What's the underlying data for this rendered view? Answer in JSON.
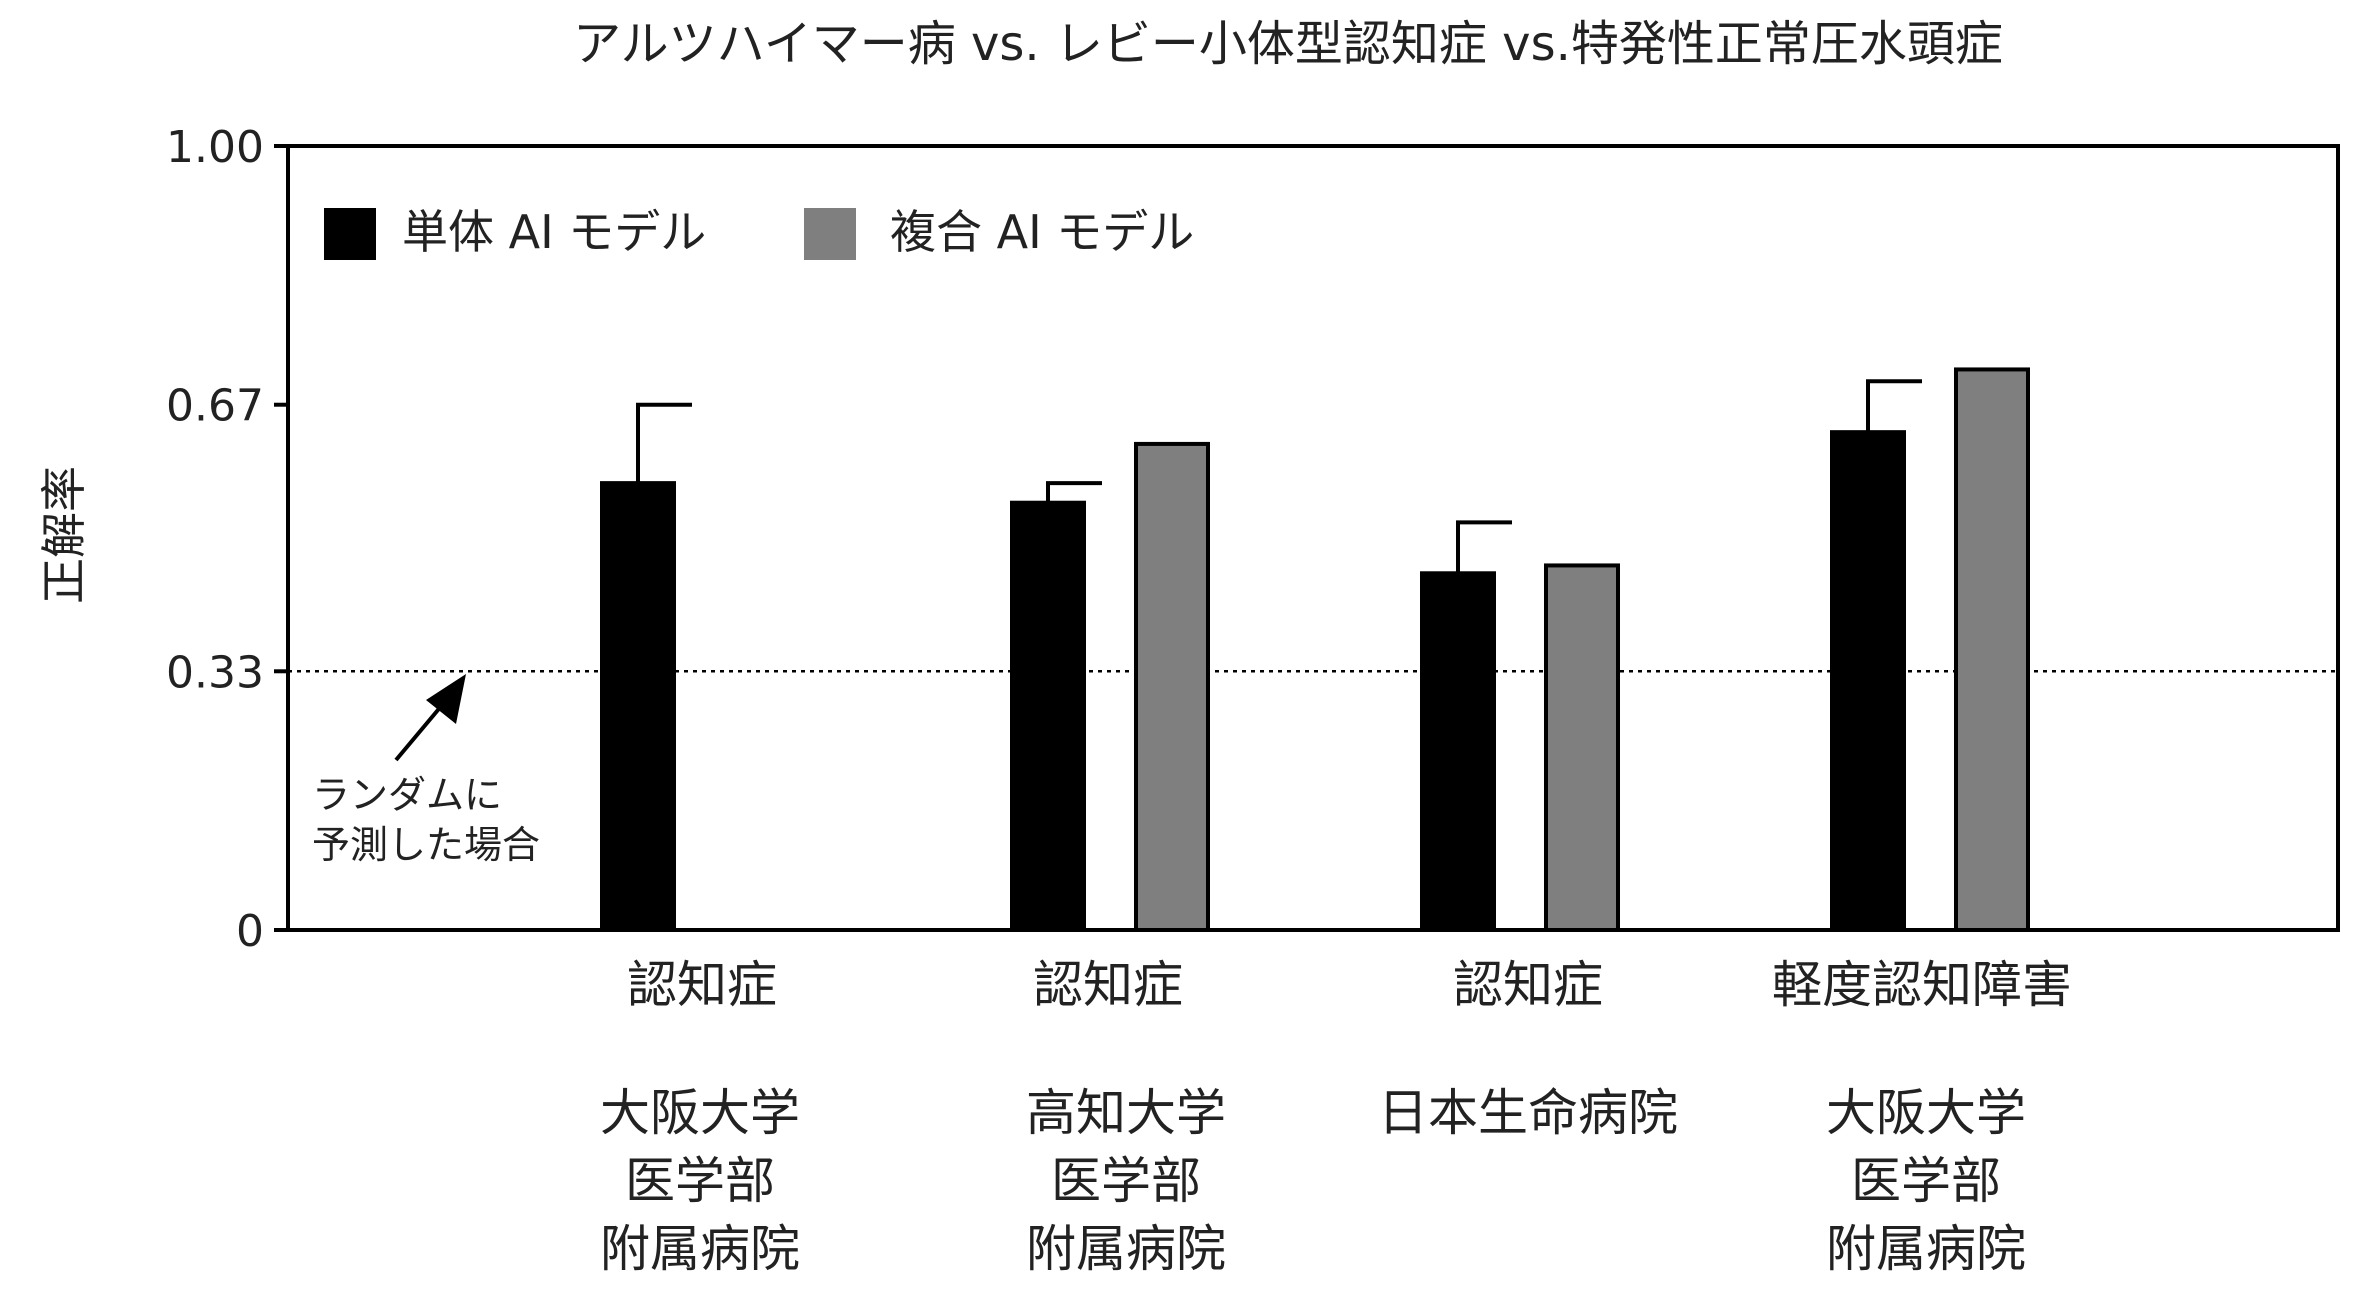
{
  "chart_data": {
    "type": "bar",
    "title": "アルツハイマー病 vs. レビー小体型認知症 vs.特発性正常圧水頭症",
    "ylabel": "正解率",
    "xlabel": "",
    "ylim": [
      0,
      1.0
    ],
    "yticks": [
      {
        "value": 0,
        "label": "0"
      },
      {
        "value": 0.33,
        "label": "0.33"
      },
      {
        "value": 0.67,
        "label": "0.67"
      },
      {
        "value": 1.0,
        "label": "1.00"
      }
    ],
    "grid": false,
    "legend_position": "top-left",
    "categories": [
      {
        "task": "認知症",
        "site": [
          "大阪大学",
          "医学部",
          "附属病院"
        ]
      },
      {
        "task": "認知症",
        "site": [
          "高知大学",
          "医学部",
          "附属病院"
        ]
      },
      {
        "task": "認知症",
        "site": [
          "日本生命病院"
        ]
      },
      {
        "task": "軽度認知障害",
        "site": [
          "大阪大学",
          "医学部",
          "附属病院"
        ]
      }
    ],
    "series": [
      {
        "name": "単体 AI モデル",
        "color": "#000000",
        "values": [
          0.57,
          0.545,
          0.455,
          0.635
        ],
        "error_upper": [
          0.67,
          0.57,
          0.52,
          0.7
        ]
      },
      {
        "name": "複合 AI モデル",
        "color": "#7f7f7f",
        "values": [
          null,
          0.62,
          0.465,
          0.715
        ],
        "error_upper": [
          null,
          null,
          null,
          null
        ]
      }
    ],
    "reference_line": {
      "value": 0.33,
      "style": "dotted"
    },
    "annotation": {
      "lines": [
        "ランダムに",
        "予測した場合"
      ]
    }
  }
}
